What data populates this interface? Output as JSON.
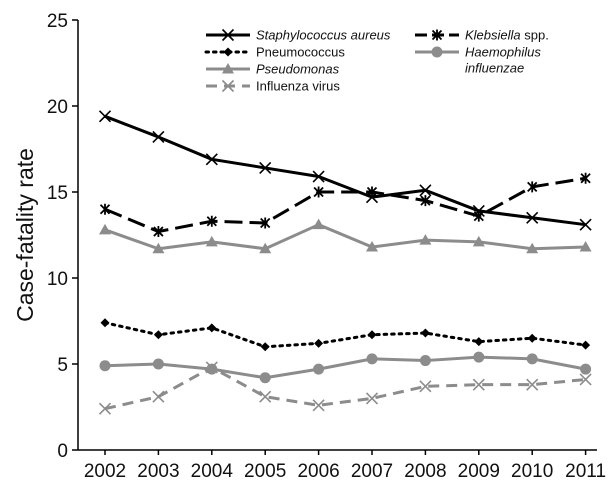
{
  "chart_data": {
    "type": "line",
    "title": "",
    "xlabel": "",
    "ylabel": "Case-fatality rate",
    "ylim": [
      0,
      25
    ],
    "yticks": [
      0,
      5,
      10,
      15,
      20,
      25
    ],
    "grid": false,
    "legend_position": "top-right",
    "x": [
      "2002",
      "2003",
      "2004",
      "2005",
      "2006",
      "2007",
      "2008",
      "2009",
      "2010",
      "2011"
    ],
    "series": [
      {
        "name": "Staphylococcus aureus",
        "name_italic": "Staphylococcus aureus",
        "name_rest": "",
        "values": [
          19.4,
          18.2,
          16.9,
          16.4,
          15.9,
          14.7,
          15.1,
          13.9,
          13.5,
          13.1
        ],
        "color": "#000000",
        "dash": "solid",
        "marker": "x"
      },
      {
        "name": "Klebsiella spp.",
        "name_italic": "Klebsiella",
        "name_rest": " spp.",
        "values": [
          14.0,
          12.7,
          13.3,
          13.2,
          15.0,
          15.0,
          14.5,
          13.6,
          15.3,
          15.8
        ],
        "color": "#000000",
        "dash": "longdash",
        "marker": "star"
      },
      {
        "name": "Pneumococcus",
        "name_italic": "",
        "name_rest": "Pneumococcus",
        "values": [
          7.4,
          6.7,
          7.1,
          6.0,
          6.2,
          6.7,
          6.8,
          6.3,
          6.5,
          6.1
        ],
        "color": "#000000",
        "dash": "dotted",
        "marker": "diamond"
      },
      {
        "name": "Haemophilus influenzae",
        "name_italic": "Haemophilus influenzae",
        "name_rest": "",
        "values": [
          4.9,
          5.0,
          4.7,
          4.2,
          4.7,
          5.3,
          5.2,
          5.4,
          5.3,
          4.7
        ],
        "color": "#8c8c8c",
        "dash": "solid",
        "marker": "circle"
      },
      {
        "name": "Pseudomonas",
        "name_italic": "Pseudomonas",
        "name_rest": "",
        "values": [
          12.8,
          11.7,
          12.1,
          11.7,
          13.1,
          11.8,
          12.2,
          12.1,
          11.7,
          11.8
        ],
        "color": "#8c8c8c",
        "dash": "solid",
        "marker": "triangle"
      },
      {
        "name": "Influenza virus",
        "name_italic": "",
        "name_rest": "Influenza virus",
        "values": [
          2.4,
          3.1,
          4.8,
          3.1,
          2.6,
          3.0,
          3.7,
          3.8,
          3.8,
          4.1
        ],
        "color": "#8c8c8c",
        "dash": "dashed",
        "marker": "x"
      }
    ]
  }
}
